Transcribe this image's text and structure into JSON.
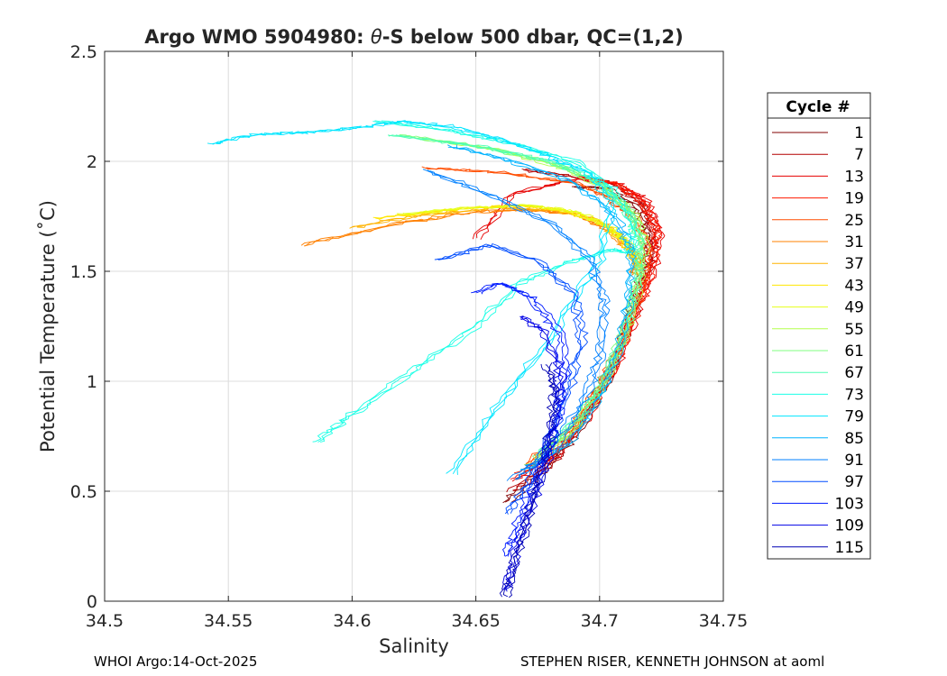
{
  "chart_data": {
    "type": "line",
    "title": "Argo WMO 5904980: θ-S below 500 dbar,  QC=(1,2)",
    "title_theta_symbol": "θ",
    "xlabel": "Salinity",
    "ylabel": "Potential Temperature (˚C)",
    "xlim": [
      34.5,
      34.75
    ],
    "ylim": [
      0,
      2.5
    ],
    "xticks": [
      34.5,
      34.55,
      34.6,
      34.65,
      34.7,
      34.75
    ],
    "xtick_labels": [
      "34.5",
      "34.55",
      "34.6",
      "34.65",
      "34.7",
      "34.75"
    ],
    "yticks": [
      0,
      0.5,
      1,
      1.5,
      2,
      2.5
    ],
    "ytick_labels": [
      "0",
      "0.5",
      "1",
      "1.5",
      "2",
      "2.5"
    ],
    "grid": true,
    "legend": {
      "title": "Cycle #",
      "position": "right",
      "entries": [
        {
          "label": "1",
          "color": "#800000"
        },
        {
          "label": "7",
          "color": "#b30000"
        },
        {
          "label": "13",
          "color": "#e60000"
        },
        {
          "label": "19",
          "color": "#ff1a00"
        },
        {
          "label": "25",
          "color": "#ff4d00"
        },
        {
          "label": "31",
          "color": "#ff8000"
        },
        {
          "label": "37",
          "color": "#ffb300"
        },
        {
          "label": "43",
          "color": "#ffe600"
        },
        {
          "label": "49",
          "color": "#e6ff1a"
        },
        {
          "label": "55",
          "color": "#b3ff4d"
        },
        {
          "label": "61",
          "color": "#80ff80"
        },
        {
          "label": "67",
          "color": "#4dffb3"
        },
        {
          "label": "73",
          "color": "#1affe6"
        },
        {
          "label": "79",
          "color": "#00e6ff"
        },
        {
          "label": "85",
          "color": "#00b3ff"
        },
        {
          "label": "91",
          "color": "#0080ff"
        },
        {
          "label": "97",
          "color": "#004dff"
        },
        {
          "label": "103",
          "color": "#001aff"
        },
        {
          "label": "109",
          "color": "#0000e6"
        },
        {
          "label": "115",
          "color": "#0000b3"
        }
      ]
    },
    "series": [
      {
        "name": "1",
        "color": "#800000",
        "x": [
          34.662,
          34.678,
          34.69,
          34.703,
          34.712,
          34.718,
          34.72,
          34.716,
          34.703,
          34.69
        ],
        "y": [
          0.45,
          0.6,
          0.75,
          1.0,
          1.3,
          1.5,
          1.65,
          1.78,
          1.88,
          1.88
        ]
      },
      {
        "name": "7",
        "color": "#b30000",
        "x": [
          34.664,
          34.68,
          34.692,
          34.705,
          34.714,
          34.72,
          34.722,
          34.718,
          34.706,
          34.69,
          34.67
        ],
        "y": [
          0.5,
          0.62,
          0.8,
          1.05,
          1.32,
          1.52,
          1.67,
          1.8,
          1.9,
          1.93,
          1.96
        ]
      },
      {
        "name": "13",
        "color": "#e60000",
        "x": [
          34.666,
          34.682,
          34.695,
          34.707,
          34.716,
          34.722,
          34.724,
          34.719,
          34.707,
          34.69,
          34.665,
          34.65
        ],
        "y": [
          0.55,
          0.66,
          0.84,
          1.08,
          1.35,
          1.52,
          1.68,
          1.82,
          1.9,
          1.92,
          1.85,
          1.65
        ]
      },
      {
        "name": "19",
        "color": "#ff1a00",
        "x": [
          34.668,
          34.684,
          34.696,
          34.708,
          34.717,
          34.722,
          34.723,
          34.717,
          34.706,
          34.692
        ],
        "y": [
          0.58,
          0.7,
          0.88,
          1.12,
          1.38,
          1.55,
          1.7,
          1.82,
          1.9,
          1.93
        ]
      },
      {
        "name": "25",
        "color": "#ff4d00",
        "x": [
          34.67,
          34.69,
          34.7,
          34.71,
          34.717,
          34.72,
          34.714,
          34.703,
          34.69,
          34.66,
          34.63
        ],
        "y": [
          0.62,
          0.8,
          0.98,
          1.2,
          1.42,
          1.6,
          1.74,
          1.84,
          1.9,
          1.95,
          1.97
        ]
      },
      {
        "name": "31",
        "color": "#ff8000",
        "x": [
          34.58,
          34.62,
          34.65,
          34.67,
          34.69,
          34.705,
          34.712,
          34.716,
          34.714
        ],
        "y": [
          1.62,
          1.72,
          1.77,
          1.78,
          1.76,
          1.68,
          1.6,
          1.55,
          1.48
        ]
      },
      {
        "name": "37",
        "color": "#ffb300",
        "x": [
          34.6,
          34.63,
          34.66,
          34.68,
          34.698,
          34.708,
          34.714,
          34.715
        ],
        "y": [
          1.7,
          1.76,
          1.79,
          1.78,
          1.74,
          1.66,
          1.58,
          1.52
        ]
      },
      {
        "name": "43",
        "color": "#ffe600",
        "x": [
          34.61,
          34.64,
          34.665,
          34.685,
          34.7,
          34.71,
          34.714
        ],
        "y": [
          1.74,
          1.78,
          1.8,
          1.78,
          1.72,
          1.64,
          1.56
        ]
      },
      {
        "name": "49",
        "color": "#e6ff1a",
        "x": [
          34.62,
          34.65,
          34.672,
          34.69,
          34.704,
          34.712
        ],
        "y": [
          1.76,
          1.79,
          1.8,
          1.77,
          1.7,
          1.62
        ]
      },
      {
        "name": "55",
        "color": "#b3ff4d",
        "x": [
          34.672,
          34.688,
          34.7,
          34.71,
          34.716,
          34.718,
          34.714,
          34.702,
          34.685,
          34.66,
          34.63
        ],
        "y": [
          0.62,
          0.76,
          0.95,
          1.2,
          1.45,
          1.62,
          1.76,
          1.88,
          1.97,
          2.05,
          2.1
        ]
      },
      {
        "name": "61",
        "color": "#80ff80",
        "x": [
          34.674,
          34.69,
          34.702,
          34.711,
          34.716,
          34.717,
          34.712,
          34.7,
          34.682,
          34.655,
          34.62
        ],
        "y": [
          0.65,
          0.8,
          1.0,
          1.25,
          1.48,
          1.64,
          1.78,
          1.9,
          1.99,
          2.06,
          2.12
        ]
      },
      {
        "name": "67",
        "color": "#4dffb3",
        "x": [
          34.676,
          34.692,
          34.704,
          34.712,
          34.716,
          34.716,
          34.71,
          34.698,
          34.68,
          34.65,
          34.615
        ],
        "y": [
          0.68,
          0.84,
          1.05,
          1.28,
          1.5,
          1.66,
          1.8,
          1.92,
          2.0,
          2.07,
          2.12
        ]
      },
      {
        "name": "73",
        "color": "#1affe6",
        "x": [
          34.585,
          34.6,
          34.625,
          34.65,
          34.668,
          34.69,
          34.705,
          34.712,
          34.714,
          34.705,
          34.69,
          34.665,
          34.64,
          34.61
        ],
        "y": [
          0.72,
          0.85,
          1.05,
          1.25,
          1.45,
          1.55,
          1.6,
          1.58,
          1.7,
          1.88,
          2.0,
          2.08,
          2.14,
          2.18
        ]
      },
      {
        "name": "79",
        "color": "#00e6ff",
        "x": [
          34.543,
          34.56,
          34.58,
          34.6,
          34.62,
          34.64,
          34.66,
          34.68,
          34.695,
          34.705,
          34.7,
          34.68,
          34.66,
          34.64
        ],
        "y": [
          2.08,
          2.12,
          2.13,
          2.15,
          2.18,
          2.16,
          2.1,
          2.02,
          1.95,
          1.82,
          1.55,
          1.2,
          0.9,
          0.58
        ]
      },
      {
        "name": "85",
        "color": "#00b3ff",
        "x": [
          34.67,
          34.688,
          34.7,
          34.708,
          34.712,
          34.713,
          34.706,
          34.69,
          34.665,
          34.64
        ],
        "y": [
          0.6,
          0.72,
          0.92,
          1.15,
          1.4,
          1.6,
          1.76,
          1.9,
          2.0,
          2.07
        ]
      },
      {
        "name": "91",
        "color": "#0080ff",
        "x": [
          34.665,
          34.68,
          34.692,
          34.7,
          34.702,
          34.697,
          34.68,
          34.655,
          34.63
        ],
        "y": [
          0.55,
          0.68,
          0.88,
          1.1,
          1.35,
          1.55,
          1.72,
          1.85,
          1.96
        ]
      },
      {
        "name": "97",
        "color": "#004dff",
        "x": [
          34.663,
          34.672,
          34.68,
          34.688,
          34.693,
          34.69,
          34.675,
          34.655,
          34.635
        ],
        "y": [
          0.4,
          0.55,
          0.75,
          0.98,
          1.2,
          1.4,
          1.55,
          1.62,
          1.55
        ]
      },
      {
        "name": "103",
        "color": "#001aff",
        "x": [
          34.662,
          34.668,
          34.675,
          34.682,
          34.686,
          34.684,
          34.672,
          34.66,
          34.65
        ],
        "y": [
          0.2,
          0.38,
          0.58,
          0.8,
          1.02,
          1.22,
          1.38,
          1.45,
          1.4
        ]
      },
      {
        "name": "109",
        "color": "#0000e6",
        "x": [
          34.662,
          34.667,
          34.673,
          34.679,
          34.683,
          34.684,
          34.678,
          34.668
        ],
        "y": [
          0.05,
          0.25,
          0.45,
          0.65,
          0.85,
          1.05,
          1.22,
          1.3
        ]
      },
      {
        "name": "115",
        "color": "#0000b3",
        "x": [
          34.662,
          34.666,
          34.671,
          34.676,
          34.68,
          34.682,
          34.679
        ],
        "y": [
          0.02,
          0.18,
          0.38,
          0.58,
          0.78,
          0.95,
          1.08
        ]
      }
    ]
  },
  "footer": {
    "left": "WHOI Argo:14-Oct-2025",
    "right": "STEPHEN RISER, KENNETH JOHNSON at aoml"
  }
}
